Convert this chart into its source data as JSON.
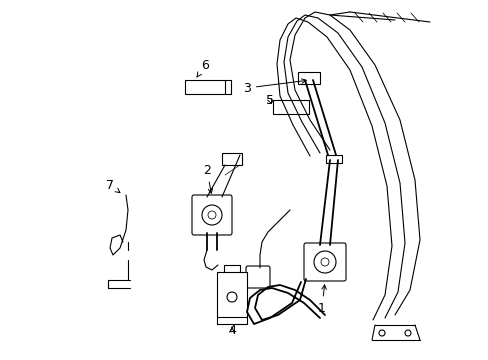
{
  "bg_color": "#ffffff",
  "line_color": "#000000",
  "fig_width": 4.89,
  "fig_height": 3.6,
  "dpi": 100,
  "label_fontsize": 9,
  "lw_belt": 1.3,
  "lw_thin": 0.8,
  "lw_thick": 1.8
}
